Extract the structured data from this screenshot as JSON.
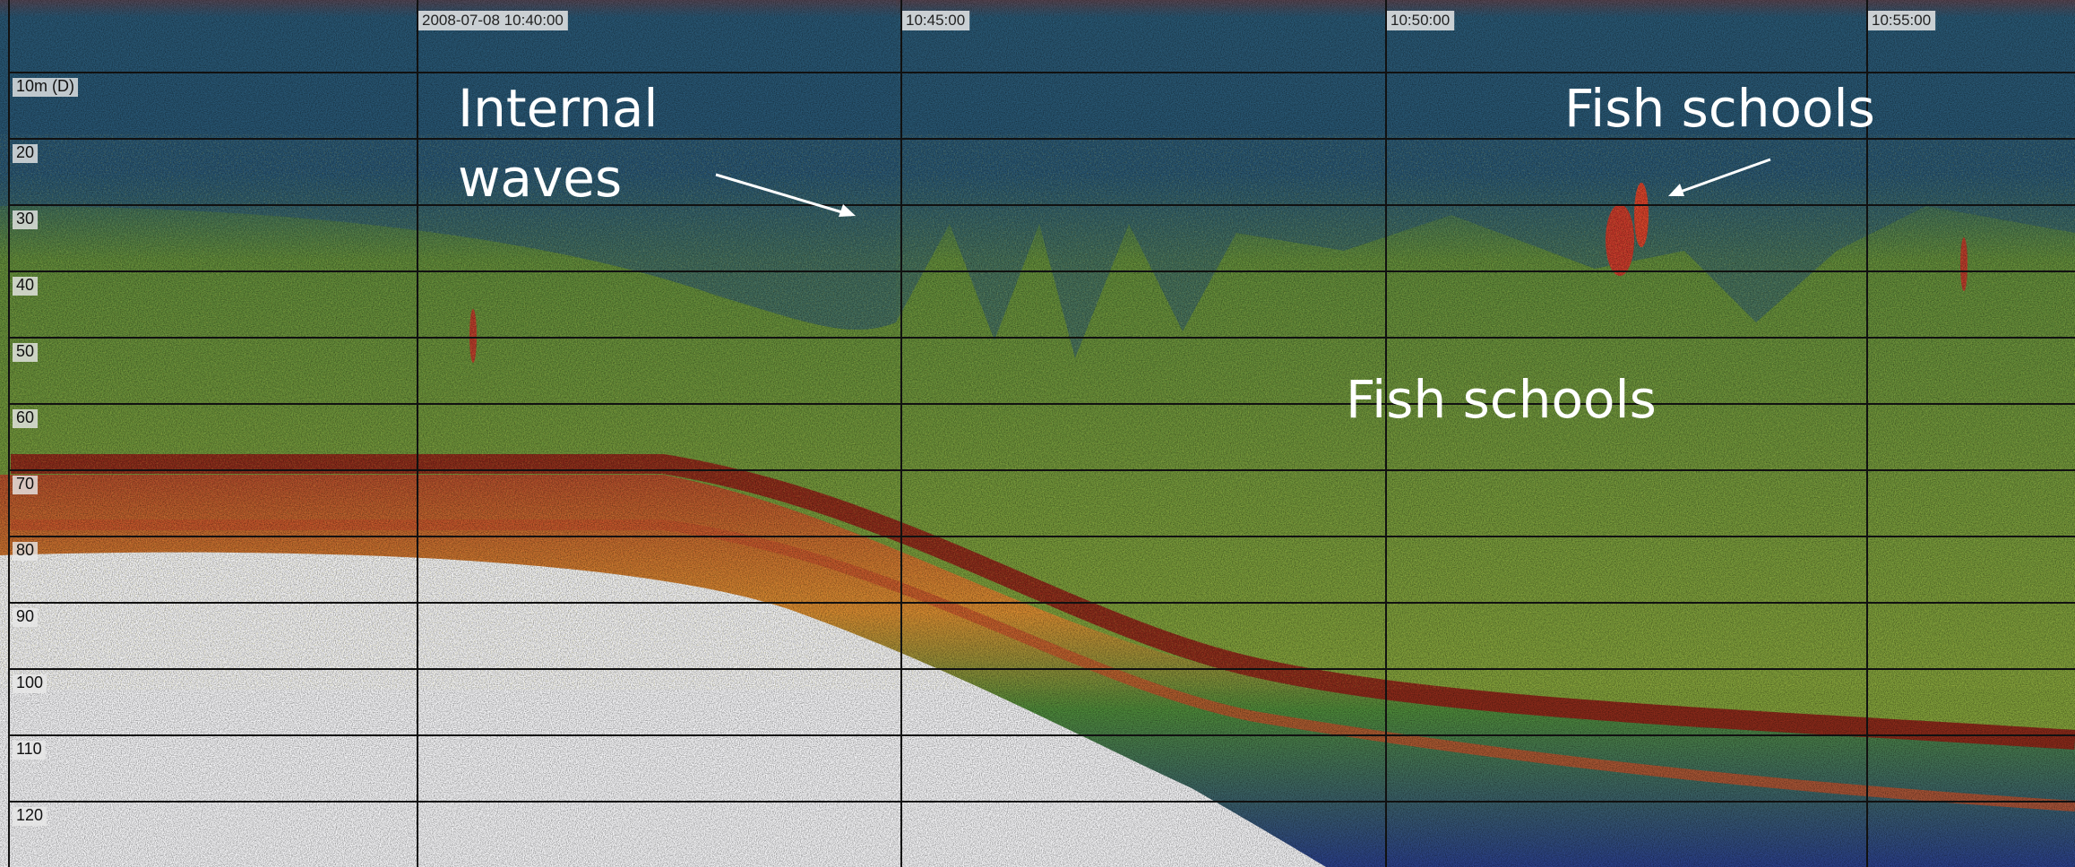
{
  "timestamps": [
    "2008-07-08 10:40:00",
    "10:45:00",
    "10:50:00",
    "10:55:00"
  ],
  "depth_labels": [
    "10m (D)",
    "20",
    "30",
    "40",
    "50",
    "60",
    "70",
    "80",
    "90",
    "100",
    "110",
    "120"
  ],
  "annotations": {
    "internal_waves": [
      "Internal",
      "waves"
    ],
    "fish_schools_top": "Fish schools",
    "fish_schools_middle": "Fish schools"
  }
}
